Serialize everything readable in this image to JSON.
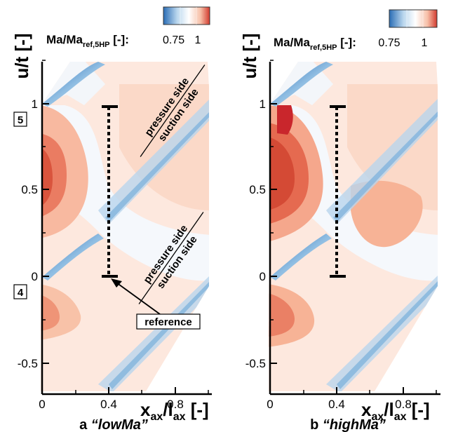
{
  "chart_data": [
    {
      "type": "heatmap",
      "panel_label": "a",
      "title": "“lowMa”",
      "xlabel": "x_ax/l_ax [-]",
      "ylabel": "u/t [-]",
      "xlim": [
        0,
        1.0
      ],
      "ylim": [
        -0.5,
        1.1
      ],
      "xticks": [
        "0",
        "0.4",
        "0.8"
      ],
      "yticks": [
        "-0.5",
        "0",
        "0.5",
        "1"
      ],
      "colorbar": {
        "label_main": "Ma/Ma",
        "label_sub": "ref,5HP",
        "label_unit": "[-]:",
        "ticks": [
          "0.75",
          "1"
        ],
        "colors": [
          "#2a6db5",
          "#bcd8ee",
          "#ffffff",
          "#f7c0a8",
          "#d23a2e"
        ]
      },
      "traverse": {
        "x": 0.4,
        "y_start": 0.0,
        "y_end": 1.0
      },
      "annotations": {
        "plane_upper": "5",
        "plane_lower": "4",
        "reference": "reference",
        "upper_pressure": "pressure side",
        "upper_suction": "suction side",
        "lower_pressure": "pressure side",
        "lower_suction": "suction side"
      }
    },
    {
      "type": "heatmap",
      "panel_label": "b",
      "title": "“highMa”",
      "xlabel": "x_ax/l_ax [-]",
      "ylabel": "u/t [-]",
      "xlim": [
        0,
        1.0
      ],
      "ylim": [
        -0.5,
        1.1
      ],
      "xticks": [
        "0",
        "0.4",
        "0.8"
      ],
      "yticks": [
        "-0.5",
        "0",
        "0.5",
        "1"
      ],
      "colorbar": {
        "label_main": "Ma/Ma",
        "label_sub": "ref,5HP",
        "label_unit": "[-]:",
        "ticks": [
          "0.75",
          "1"
        ],
        "colors": [
          "#2a6db5",
          "#bcd8ee",
          "#ffffff",
          "#f7c0a8",
          "#d23a2e"
        ]
      },
      "traverse": {
        "x": 0.4,
        "y_start": 0.0,
        "y_end": 1.0
      }
    }
  ]
}
